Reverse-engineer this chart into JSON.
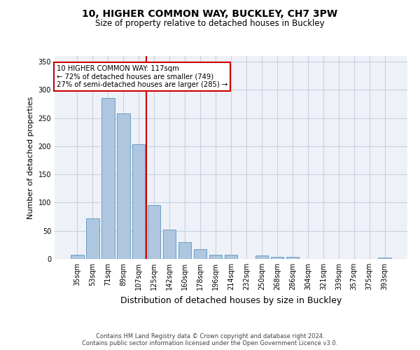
{
  "title": "10, HIGHER COMMON WAY, BUCKLEY, CH7 3PW",
  "subtitle": "Size of property relative to detached houses in Buckley",
  "xlabel": "Distribution of detached houses by size in Buckley",
  "ylabel": "Number of detached properties",
  "categories": [
    "35sqm",
    "53sqm",
    "71sqm",
    "89sqm",
    "107sqm",
    "125sqm",
    "142sqm",
    "160sqm",
    "178sqm",
    "196sqm",
    "214sqm",
    "232sqm",
    "250sqm",
    "268sqm",
    "286sqm",
    "304sqm",
    "321sqm",
    "339sqm",
    "357sqm",
    "375sqm",
    "393sqm"
  ],
  "values": [
    8,
    72,
    285,
    258,
    204,
    96,
    52,
    30,
    18,
    8,
    8,
    0,
    6,
    4,
    4,
    0,
    0,
    0,
    0,
    0,
    3
  ],
  "bar_color": "#aec6e0",
  "bar_edge_color": "#6a9fc0",
  "annotation_line1": "10 HIGHER COMMON WAY: 117sqm",
  "annotation_line2": "← 72% of detached houses are smaller (749)",
  "annotation_line3": "27% of semi-detached houses are larger (285) →",
  "annotation_box_color": "#ffffff",
  "annotation_box_edge": "#cc0000",
  "vertical_line_color": "#cc0000",
  "ylim": [
    0,
    360
  ],
  "yticks": [
    0,
    50,
    100,
    150,
    200,
    250,
    300,
    350
  ],
  "footer": "Contains HM Land Registry data © Crown copyright and database right 2024.\nContains public sector information licensed under the Open Government Licence v3.0.",
  "bg_color": "#eef2f8",
  "grid_color": "#c8d0de"
}
